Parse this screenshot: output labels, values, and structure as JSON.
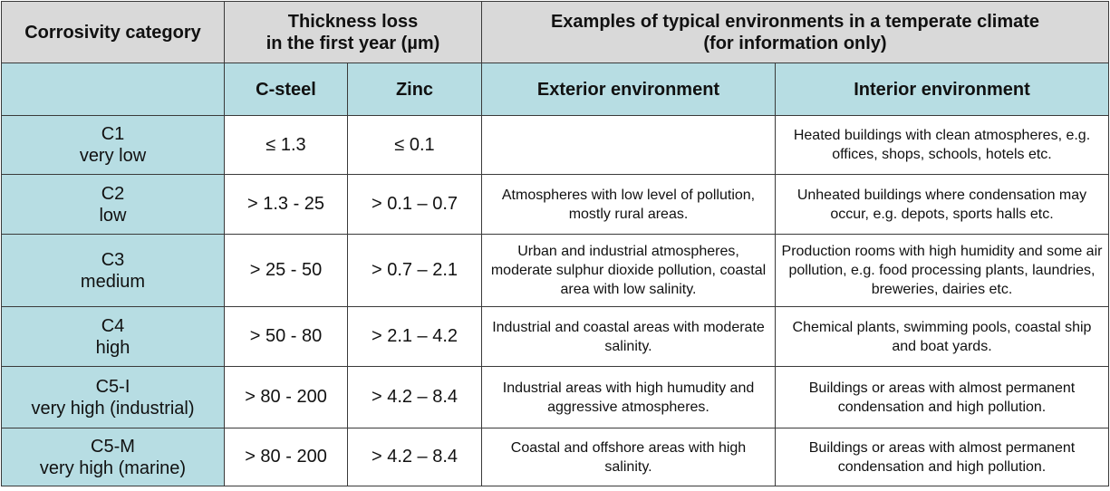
{
  "headers": {
    "category": "Corrosivity category",
    "thickness_line1": "Thickness loss",
    "thickness_line2": "in the first year (µm)",
    "examples_line1": "Examples of typical environments in a temperate climate",
    "examples_line2": "(for information only)",
    "csteel": "C-steel",
    "zinc": "Zinc",
    "exterior": "Exterior environment",
    "interior": "Interior environment"
  },
  "rows": [
    {
      "code": "C1",
      "level": "very low",
      "csteel": "≤ 1.3",
      "zinc": "≤ 0.1",
      "exterior": "",
      "interior": "Heated buildings with clean atmospheres, e.g. offices, shops, schools, hotels etc."
    },
    {
      "code": "C2",
      "level": "low",
      "csteel": "> 1.3 - 25",
      "zinc": "> 0.1 – 0.7",
      "exterior": "Atmospheres with low level of pollution, mostly rural areas.",
      "interior": "Unheated buildings where condensation may occur, e.g. depots, sports halls etc."
    },
    {
      "code": "C3",
      "level": "medium",
      "csteel": "> 25 - 50",
      "zinc": "> 0.7 – 2.1",
      "exterior": "Urban and industrial atmospheres, moderate sulphur dioxide pollution, coastal area with low salinity.",
      "interior": "Production rooms with high humidity and some air pollution, e.g. food processing plants, laundries, breweries, dairies etc."
    },
    {
      "code": "C4",
      "level": "high",
      "csteel": "> 50 - 80",
      "zinc": "> 2.1 – 4.2",
      "exterior": "Industrial and coastal areas with moderate salinity.",
      "interior": "Chemical plants, swimming pools, coastal ship and boat yards."
    },
    {
      "code": "C5-I",
      "level": "very high (industrial)",
      "csteel": "> 80 - 200",
      "zinc": "> 4.2 – 8.4",
      "exterior": "Industrial areas with high humudity and aggressive atmospheres.",
      "interior": "Buildings or areas with almost permanent condensation and high pollution."
    },
    {
      "code": "C5-M",
      "level": "very high (marine)",
      "csteel": "> 80 - 200",
      "zinc": "> 4.2 – 8.4",
      "exterior": "Coastal and offshore areas with high salinity.",
      "interior": "Buildings or areas with almost permanent condensation and high pollution."
    }
  ],
  "colors": {
    "header_grey": "#d9d9d9",
    "header_blue": "#b7dde3",
    "border": "#3a3a3a"
  }
}
